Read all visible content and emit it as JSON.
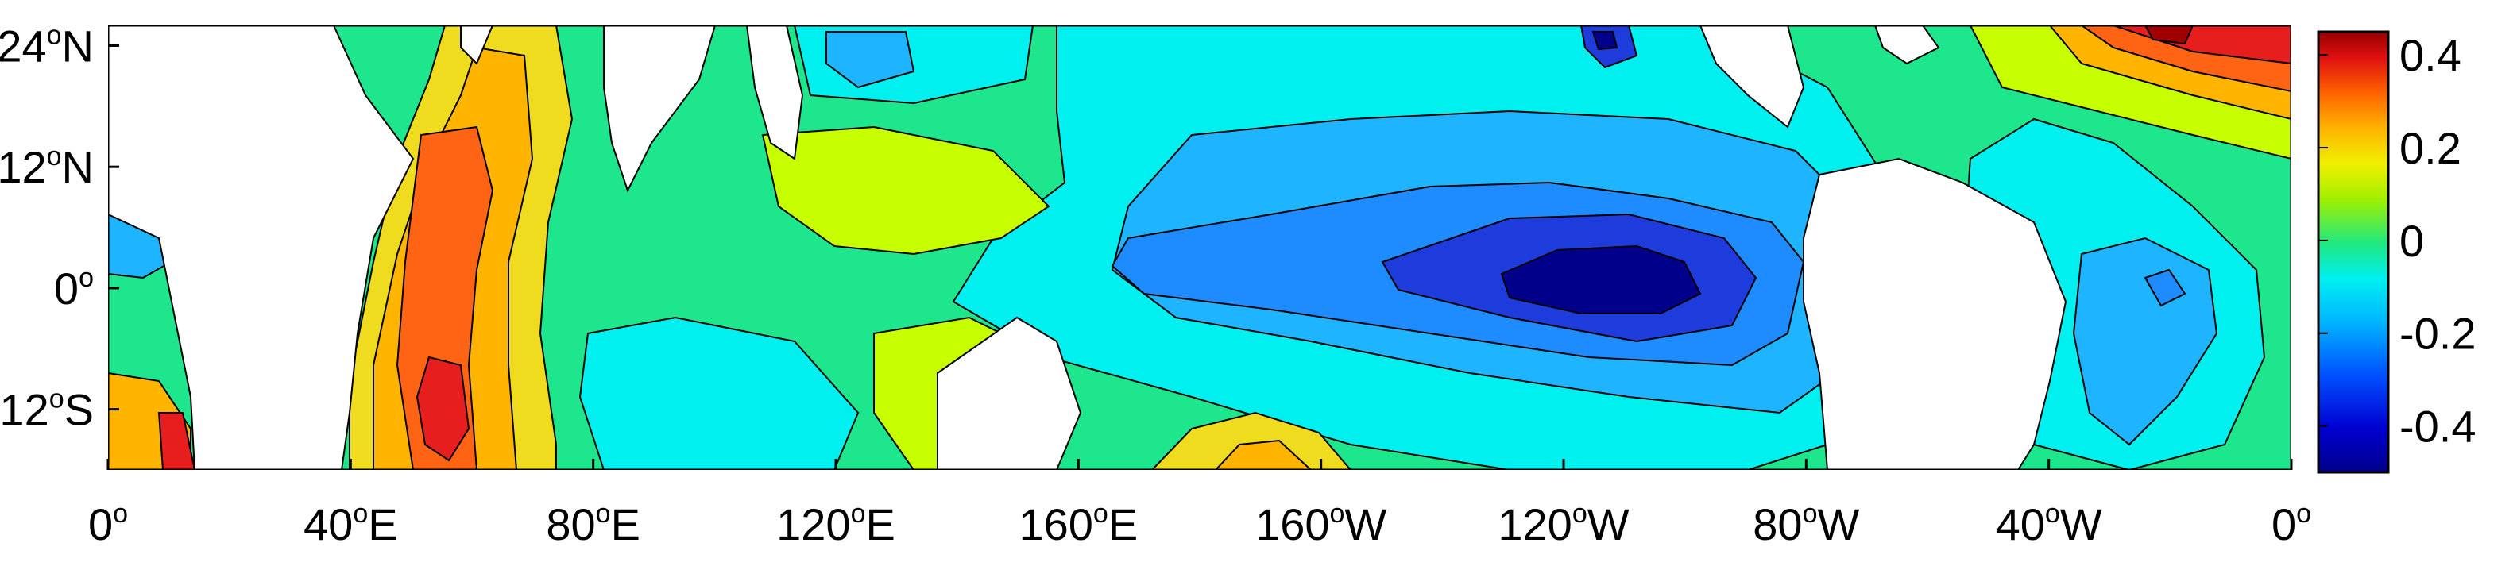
{
  "map": {
    "type": "contour-map",
    "x_ticks": [
      {
        "deg": "0",
        "suffix": ""
      },
      {
        "deg": "40",
        "suffix": "E"
      },
      {
        "deg": "80",
        "suffix": "E"
      },
      {
        "deg": "120",
        "suffix": "E"
      },
      {
        "deg": "160",
        "suffix": "E"
      },
      {
        "deg": "160",
        "suffix": "W"
      },
      {
        "deg": "120",
        "suffix": "W"
      },
      {
        "deg": "80",
        "suffix": "W"
      },
      {
        "deg": "40",
        "suffix": "W"
      },
      {
        "deg": "0",
        "suffix": ""
      }
    ],
    "y_ticks": [
      {
        "deg": "24",
        "suffix": "N"
      },
      {
        "deg": "12",
        "suffix": "N"
      },
      {
        "deg": "0",
        "suffix": ""
      },
      {
        "deg": "12",
        "suffix": "S"
      }
    ],
    "lon_range": [
      0,
      360
    ],
    "lat_range": [
      -18,
      26
    ],
    "land_color": "#ffffff",
    "colors": {
      "deep_blue": "#00008b",
      "blue": "#1e3cdc",
      "mid_blue": "#1e8cff",
      "light_blue": "#1eb4ff",
      "cyan": "#00f0f0",
      "green": "#1ee68c",
      "lime": "#c8ff00",
      "yellow": "#f0dc1e",
      "orange": "#ffb400",
      "dark_orange": "#ff6414",
      "red": "#e61e1e",
      "dark_red": "#a00000"
    }
  },
  "colorbar": {
    "vmin": -0.5,
    "vmax": 0.45,
    "labels": [
      "0.4",
      "0.2",
      "0",
      "-0.2",
      "-0.4"
    ],
    "label_values": [
      0.4,
      0.2,
      0,
      -0.2,
      -0.4
    ]
  }
}
